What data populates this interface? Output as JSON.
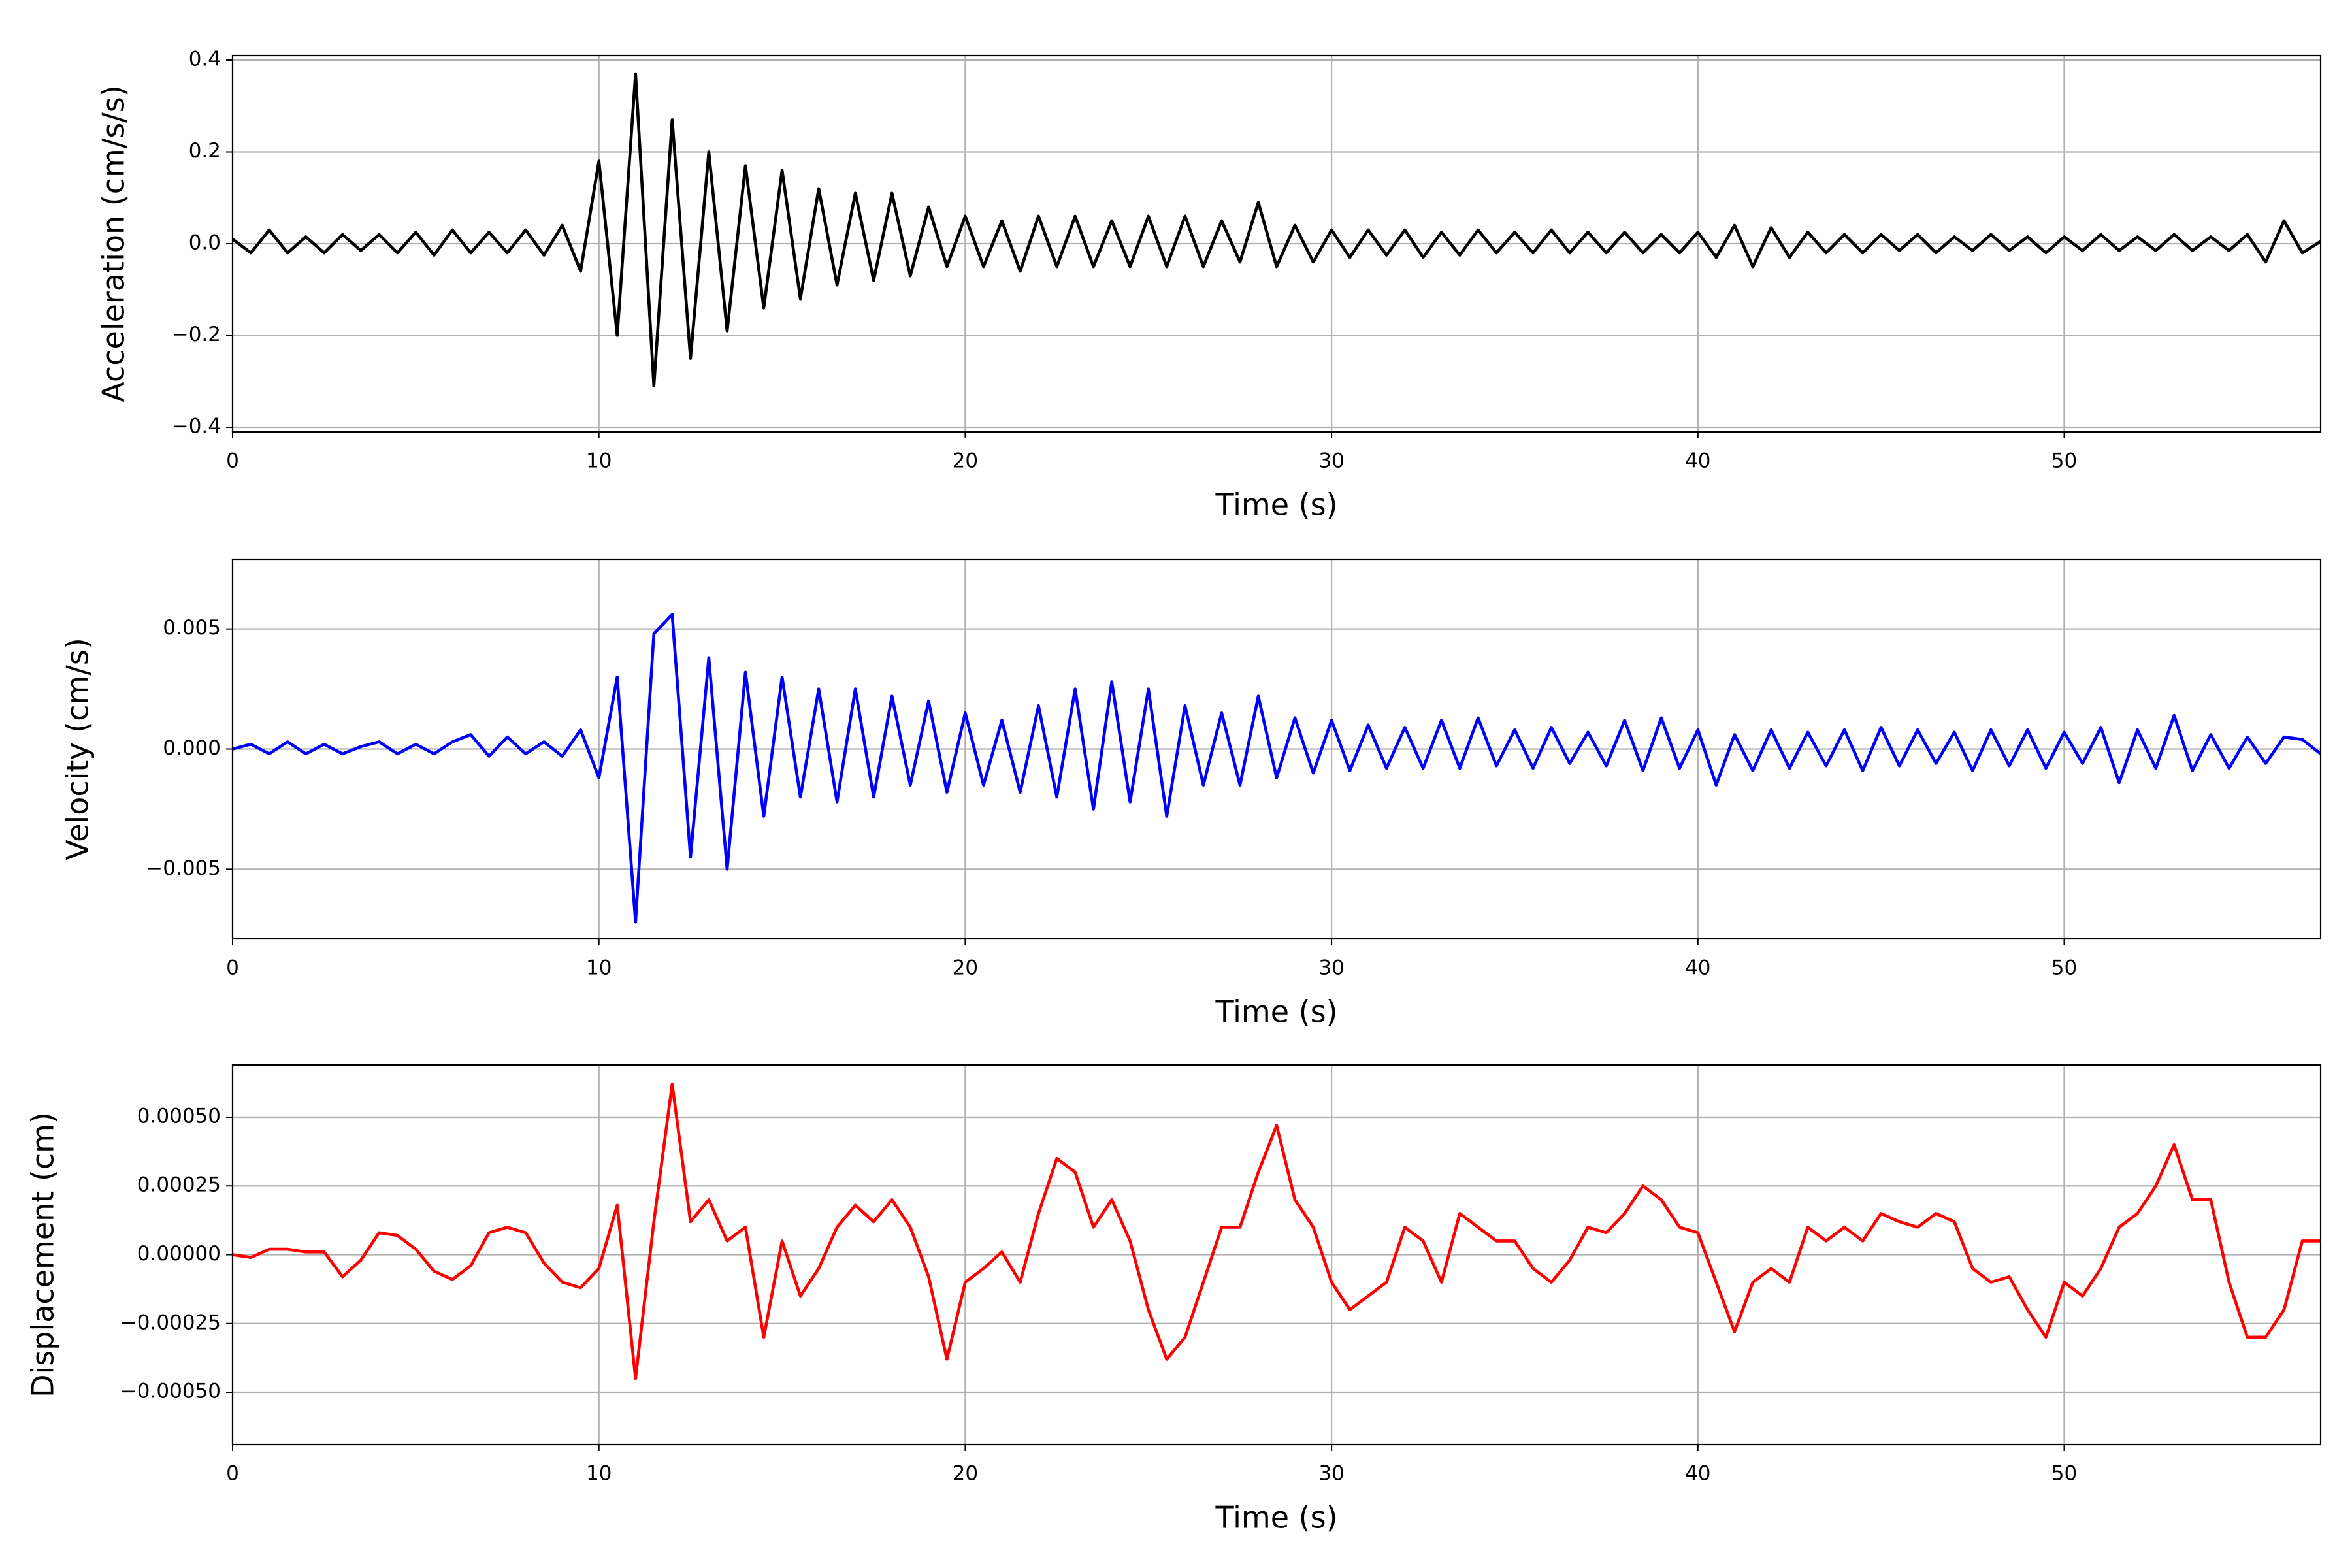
{
  "chart_data": [
    {
      "type": "line",
      "xlabel": "Time (s)",
      "ylabel": "Acceleration (cm/s/s)",
      "color": "#000000",
      "grid": true,
      "xlim": [
        0,
        57
      ],
      "xticks": [
        0,
        10,
        20,
        30,
        40,
        50
      ],
      "ylim": [
        -0.41,
        0.41
      ],
      "yticks": [
        {
          "value": -0.4,
          "label": "−0.4"
        },
        {
          "value": -0.2,
          "label": "−0.2"
        },
        {
          "value": 0,
          "label": "0.0"
        },
        {
          "value": 0.2,
          "label": "0.2"
        },
        {
          "value": 0.4,
          "label": "0.4"
        }
      ],
      "x": [
        0,
        0.5,
        1,
        1.5,
        2,
        2.5,
        3,
        3.5,
        4,
        4.5,
        5,
        5.5,
        6,
        6.5,
        7,
        7.5,
        8,
        8.5,
        9,
        9.5,
        10,
        10.5,
        11,
        11.5,
        12,
        12.5,
        13,
        13.5,
        14,
        14.5,
        15,
        15.5,
        16,
        16.5,
        17,
        17.5,
        18,
        18.5,
        19,
        19.5,
        20,
        20.5,
        21,
        21.5,
        22,
        22.5,
        23,
        23.5,
        24,
        24.5,
        25,
        25.5,
        26,
        26.5,
        27,
        27.5,
        28,
        28.5,
        29,
        29.5,
        30,
        30.5,
        31,
        31.5,
        32,
        32.5,
        33,
        33.5,
        34,
        34.5,
        35,
        35.5,
        36,
        36.5,
        37,
        37.5,
        38,
        38.5,
        39,
        39.5,
        40,
        40.5,
        41,
        41.5,
        42,
        42.5,
        43,
        43.5,
        44,
        44.5,
        45,
        45.5,
        46,
        46.5,
        47,
        47.5,
        48,
        48.5,
        49,
        49.5,
        50,
        50.5,
        51,
        51.5,
        52,
        52.5,
        53,
        53.5,
        54,
        54.5,
        55,
        55.5,
        56,
        56.5,
        57
      ],
      "values": [
        0.01,
        -0.02,
        0.03,
        -0.02,
        0.015,
        -0.02,
        0.02,
        -0.015,
        0.02,
        -0.02,
        0.025,
        -0.025,
        0.03,
        -0.02,
        0.025,
        -0.02,
        0.03,
        -0.025,
        0.04,
        -0.06,
        0.18,
        -0.2,
        0.37,
        -0.31,
        0.27,
        -0.25,
        0.2,
        -0.19,
        0.17,
        -0.14,
        0.16,
        -0.12,
        0.12,
        -0.09,
        0.11,
        -0.08,
        0.11,
        -0.07,
        0.08,
        -0.05,
        0.06,
        -0.05,
        0.05,
        -0.06,
        0.06,
        -0.05,
        0.06,
        -0.05,
        0.05,
        -0.05,
        0.06,
        -0.05,
        0.06,
        -0.05,
        0.05,
        -0.04,
        0.09,
        -0.05,
        0.04,
        -0.04,
        0.03,
        -0.03,
        0.03,
        -0.025,
        0.03,
        -0.03,
        0.025,
        -0.025,
        0.03,
        -0.02,
        0.025,
        -0.02,
        0.03,
        -0.02,
        0.025,
        -0.02,
        0.025,
        -0.02,
        0.02,
        -0.02,
        0.025,
        -0.03,
        0.04,
        -0.05,
        0.035,
        -0.03,
        0.025,
        -0.02,
        0.02,
        -0.02,
        0.02,
        -0.015,
        0.02,
        -0.02,
        0.015,
        -0.015,
        0.02,
        -0.015,
        0.015,
        -0.02,
        0.015,
        -0.015,
        0.02,
        -0.015,
        0.015,
        -0.015,
        0.02,
        -0.015,
        0.015,
        -0.015,
        0.02,
        -0.04,
        0.05,
        -0.02,
        0.005
      ]
    },
    {
      "type": "line",
      "xlabel": "Time (s)",
      "ylabel": "Velocity (cm/s)",
      "color": "#0000ff",
      "grid": true,
      "xlim": [
        0,
        57
      ],
      "xticks": [
        0,
        10,
        20,
        30,
        40,
        50
      ],
      "ylim": [
        -0.0079,
        0.0079
      ],
      "yticks": [
        {
          "value": -0.005,
          "label": "−0.005"
        },
        {
          "value": 0,
          "label": "0.000"
        },
        {
          "value": 0.005,
          "label": "0.005"
        }
      ],
      "x": [
        0,
        0.5,
        1,
        1.5,
        2,
        2.5,
        3,
        3.5,
        4,
        4.5,
        5,
        5.5,
        6,
        6.5,
        7,
        7.5,
        8,
        8.5,
        9,
        9.5,
        10,
        10.5,
        11,
        11.5,
        12,
        12.5,
        13,
        13.5,
        14,
        14.5,
        15,
        15.5,
        16,
        16.5,
        17,
        17.5,
        18,
        18.5,
        19,
        19.5,
        20,
        20.5,
        21,
        21.5,
        22,
        22.5,
        23,
        23.5,
        24,
        24.5,
        25,
        25.5,
        26,
        26.5,
        27,
        27.5,
        28,
        28.5,
        29,
        29.5,
        30,
        30.5,
        31,
        31.5,
        32,
        32.5,
        33,
        33.5,
        34,
        34.5,
        35,
        35.5,
        36,
        36.5,
        37,
        37.5,
        38,
        38.5,
        39,
        39.5,
        40,
        40.5,
        41,
        41.5,
        42,
        42.5,
        43,
        43.5,
        44,
        44.5,
        45,
        45.5,
        46,
        46.5,
        47,
        47.5,
        48,
        48.5,
        49,
        49.5,
        50,
        50.5,
        51,
        51.5,
        52,
        52.5,
        53,
        53.5,
        54,
        54.5,
        55,
        55.5,
        56,
        56.5,
        57
      ],
      "values": [
        0,
        0.0002,
        -0.0002,
        0.0003,
        -0.0002,
        0.0002,
        -0.0002,
        0.0001,
        0.0003,
        -0.0002,
        0.0002,
        -0.0002,
        0.0003,
        0.0006,
        -0.0003,
        0.0005,
        -0.0002,
        0.0003,
        -0.0003,
        0.0008,
        -0.0012,
        0.003,
        -0.0072,
        0.0048,
        0.0056,
        -0.0045,
        0.0038,
        -0.005,
        0.0032,
        -0.0028,
        0.003,
        -0.002,
        0.0025,
        -0.0022,
        0.0025,
        -0.002,
        0.0022,
        -0.0015,
        0.002,
        -0.0018,
        0.0015,
        -0.0015,
        0.0012,
        -0.0018,
        0.0018,
        -0.002,
        0.0025,
        -0.0025,
        0.0028,
        -0.0022,
        0.0025,
        -0.0028,
        0.0018,
        -0.0015,
        0.0015,
        -0.0015,
        0.0022,
        -0.0012,
        0.0013,
        -0.001,
        0.0012,
        -0.0009,
        0.001,
        -0.0008,
        0.0009,
        -0.0008,
        0.0012,
        -0.0008,
        0.0013,
        -0.0007,
        0.0008,
        -0.0008,
        0.0009,
        -0.0006,
        0.0007,
        -0.0007,
        0.0012,
        -0.0009,
        0.0013,
        -0.0008,
        0.0008,
        -0.0015,
        0.0006,
        -0.0009,
        0.0008,
        -0.0008,
        0.0007,
        -0.0007,
        0.0008,
        -0.0009,
        0.0009,
        -0.0007,
        0.0008,
        -0.0006,
        0.0007,
        -0.0009,
        0.0008,
        -0.0007,
        0.0008,
        -0.0008,
        0.0007,
        -0.0006,
        0.0009,
        -0.0014,
        0.0008,
        -0.0008,
        0.0014,
        -0.0009,
        0.0006,
        -0.0008,
        0.0005,
        -0.0006,
        0.0005,
        0.0004,
        -0.0002
      ]
    },
    {
      "type": "line",
      "xlabel": "Time (s)",
      "ylabel": "Displacement (cm)",
      "color": "#ff0000",
      "grid": true,
      "xlim": [
        0,
        57
      ],
      "xticks": [
        0,
        10,
        20,
        30,
        40,
        50
      ],
      "ylim": [
        -0.00069,
        0.00069
      ],
      "yticks": [
        {
          "value": -0.0005,
          "label": "−0.00050"
        },
        {
          "value": -0.00025,
          "label": "−0.00025"
        },
        {
          "value": 0,
          "label": "0.00000"
        },
        {
          "value": 0.00025,
          "label": "0.00025"
        },
        {
          "value": 0.0005,
          "label": "0.00050"
        }
      ],
      "x": [
        0,
        0.5,
        1,
        1.5,
        2,
        2.5,
        3,
        3.5,
        4,
        4.5,
        5,
        5.5,
        6,
        6.5,
        7,
        7.5,
        8,
        8.5,
        9,
        9.5,
        10,
        10.5,
        11,
        11.5,
        12,
        12.5,
        13,
        13.5,
        14,
        14.5,
        15,
        15.5,
        16,
        16.5,
        17,
        17.5,
        18,
        18.5,
        19,
        19.5,
        20,
        20.5,
        21,
        21.5,
        22,
        22.5,
        23,
        23.5,
        24,
        24.5,
        25,
        25.5,
        26,
        26.5,
        27,
        27.5,
        28,
        28.5,
        29,
        29.5,
        30,
        30.5,
        31,
        31.5,
        32,
        32.5,
        33,
        33.5,
        34,
        34.5,
        35,
        35.5,
        36,
        36.5,
        37,
        37.5,
        38,
        38.5,
        39,
        39.5,
        40,
        40.5,
        41,
        41.5,
        42,
        42.5,
        43,
        43.5,
        44,
        44.5,
        45,
        45.5,
        46,
        46.5,
        47,
        47.5,
        48,
        48.5,
        49,
        49.5,
        50,
        50.5,
        51,
        51.5,
        52,
        52.5,
        53,
        53.5,
        54,
        54.5,
        55,
        55.5,
        56,
        56.5,
        57
      ],
      "values": [
        0,
        -1e-05,
        2e-05,
        2e-05,
        1e-05,
        1e-05,
        -8e-05,
        -2e-05,
        8e-05,
        7e-05,
        2e-05,
        -6e-05,
        -9e-05,
        -4e-05,
        8e-05,
        0.0001,
        8e-05,
        -3e-05,
        -0.0001,
        -0.00012,
        -5e-05,
        0.00018,
        -0.00045,
        0.00012,
        0.00062,
        0.00012,
        0.0002,
        5e-05,
        0.0001,
        -0.0003,
        5e-05,
        -0.00015,
        -5e-05,
        0.0001,
        0.00018,
        0.00012,
        0.0002,
        0.0001,
        -8e-05,
        -0.00038,
        -0.0001,
        -5e-05,
        1e-05,
        -0.0001,
        0.00015,
        0.00035,
        0.0003,
        0.0001,
        0.0002,
        5e-05,
        -0.0002,
        -0.00038,
        -0.0003,
        -0.0001,
        0.0001,
        0.0001,
        0.0003,
        0.00047,
        0.0002,
        0.0001,
        -0.0001,
        -0.0002,
        -0.00015,
        -0.0001,
        0.0001,
        5e-05,
        -0.0001,
        0.00015,
        0.0001,
        5e-05,
        5e-05,
        -5e-05,
        -0.0001,
        -2e-05,
        0.0001,
        8e-05,
        0.00015,
        0.00025,
        0.0002,
        0.0001,
        8e-05,
        -0.0001,
        -0.00028,
        -0.0001,
        -5e-05,
        -0.0001,
        0.0001,
        5e-05,
        0.0001,
        5e-05,
        0.00015,
        0.00012,
        0.0001,
        0.00015,
        0.00012,
        -5e-05,
        -0.0001,
        -8e-05,
        -0.0002,
        -0.0003,
        -0.0001,
        -0.00015,
        -5e-05,
        0.0001,
        0.00015,
        0.00025,
        0.0004,
        0.0002,
        0.0002,
        -0.0001,
        -0.0003,
        -0.0003,
        -0.0002,
        5e-05,
        5e-05
      ]
    }
  ]
}
